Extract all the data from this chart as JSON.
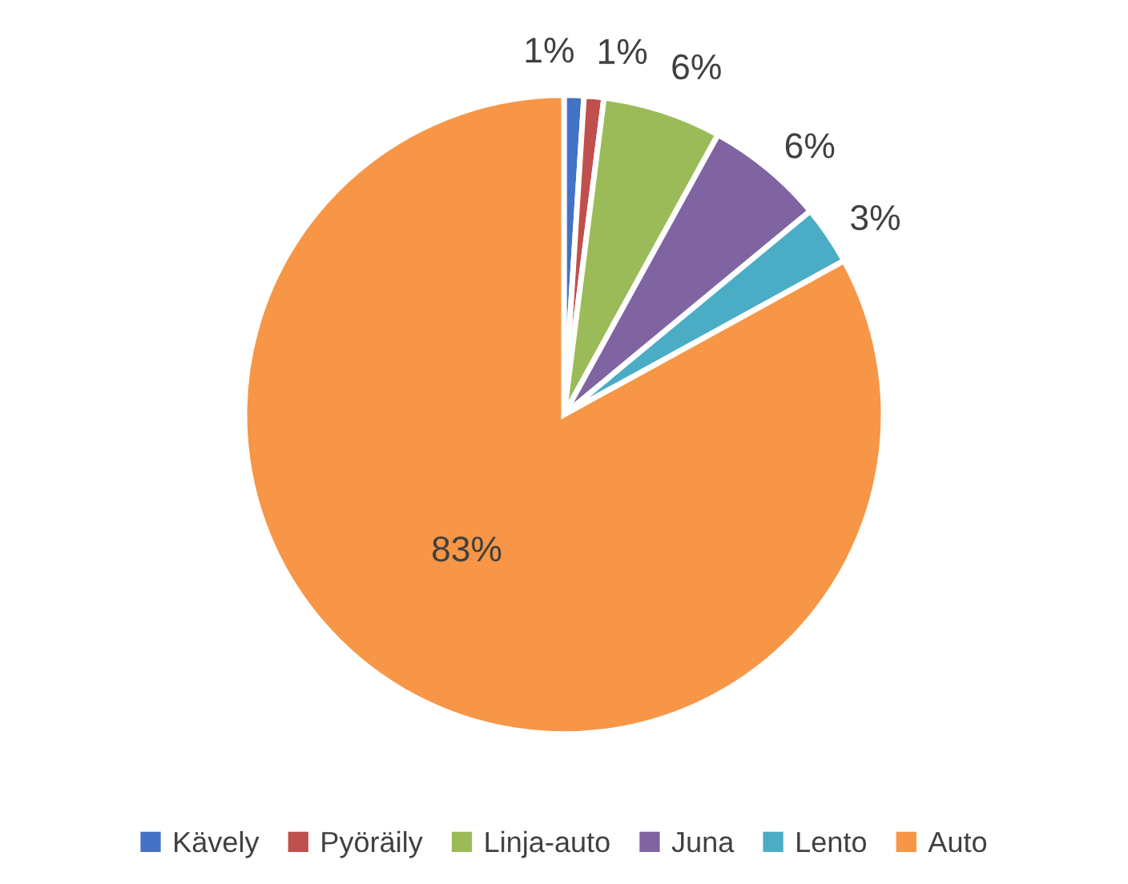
{
  "chart_data": {
    "type": "pie",
    "categories": [
      "Kävely",
      "Pyöräily",
      "Linja-auto",
      "Juna",
      "Lento",
      "Auto"
    ],
    "values": [
      1,
      1,
      6,
      6,
      3,
      83
    ],
    "colors": [
      "#4472c4",
      "#c0504d",
      "#9bbb59",
      "#8064a2",
      "#4bacc6",
      "#f79646"
    ],
    "value_labels": [
      "1%",
      "1%",
      "6%",
      "6%",
      "3%",
      "83%"
    ],
    "legend": "bottom"
  }
}
